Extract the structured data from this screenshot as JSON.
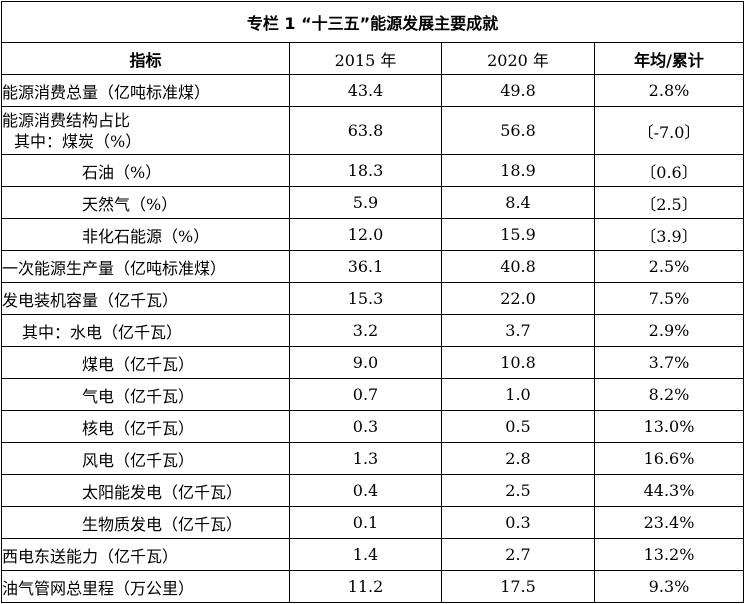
{
  "title": "专栏 1 “十三五”能源发展主要成就",
  "headers": {
    "indicator": "指标",
    "y2015": "2015 年",
    "y2020": "2020 年",
    "change": "年均/累计"
  },
  "rows": [
    {
      "label": "能源消费总量（亿吨标准煤）",
      "v2015": "43.4",
      "v2020": "49.8",
      "change": "2.8%"
    },
    {
      "label": "能源消费结构占比",
      "sublabel": "其中：煤炭（%）",
      "v2015": "63.8",
      "v2020": "56.8",
      "change": "〔-7.0〕"
    },
    {
      "label": "石油（%）",
      "v2015": "18.3",
      "v2020": "18.9",
      "change": "〔0.6〕"
    },
    {
      "label": "天然气（%）",
      "v2015": "5.9",
      "v2020": "8.4",
      "change": "〔2.5〕"
    },
    {
      "label": "非化石能源（%）",
      "v2015": "12.0",
      "v2020": "15.9",
      "change": "〔3.9〕"
    },
    {
      "label": "一次能源生产量（亿吨标准煤）",
      "v2015": "36.1",
      "v2020": "40.8",
      "change": "2.5%"
    },
    {
      "label": "发电装机容量（亿千瓦）",
      "v2015": "15.3",
      "v2020": "22.0",
      "change": "7.5%"
    },
    {
      "label": "其中：水电（亿千瓦）",
      "v2015": "3.2",
      "v2020": "3.7",
      "change": "2.9%"
    },
    {
      "label": "煤电（亿千瓦）",
      "v2015": "9.0",
      "v2020": "10.8",
      "change": "3.7%"
    },
    {
      "label": "气电（亿千瓦）",
      "v2015": "0.7",
      "v2020": "1.0",
      "change": "8.2%"
    },
    {
      "label": "核电（亿千瓦）",
      "v2015": "0.3",
      "v2020": "0.5",
      "change": "13.0%"
    },
    {
      "label": "风电（亿千瓦）",
      "v2015": "1.3",
      "v2020": "2.8",
      "change": "16.6%"
    },
    {
      "label": "太阳能发电（亿千瓦）",
      "v2015": "0.4",
      "v2020": "2.5",
      "change": "44.3%"
    },
    {
      "label": "生物质发电（亿千瓦）",
      "v2015": "0.1",
      "v2020": "0.3",
      "change": "23.4%"
    },
    {
      "label": "西电东送能力（亿千瓦）",
      "v2015": "1.4",
      "v2020": "2.7",
      "change": "13.2%"
    },
    {
      "label": "油气管网总里程（万公里）",
      "v2015": "11.2",
      "v2020": "17.5",
      "change": "9.3%"
    }
  ]
}
